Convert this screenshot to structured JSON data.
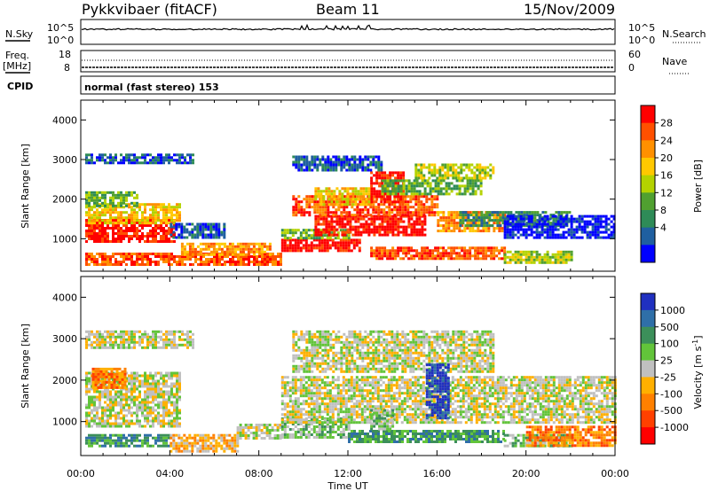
{
  "header": {
    "station": "Pykkvibaer (fitACF)",
    "beam": "Beam 11",
    "date": "15/Nov/2009"
  },
  "panels": {
    "nsky": {
      "left_label": "N.Sky",
      "right_label": "N.Search",
      "tick_top": "10^5",
      "tick_bottom": "10^0",
      "right_tick_top": "10^5",
      "right_tick_bottom": "10^0"
    },
    "freq": {
      "left_label_line1": "Freq.",
      "left_label_line2": "[MHz]",
      "tick_top": "18",
      "tick_bottom": "8",
      "right_label": "Nave",
      "right_tick_top": "60",
      "right_tick_bottom": "0"
    },
    "cpid": {
      "left_label": "CPID",
      "text": "normal (fast stereo) 153"
    }
  },
  "colorbars": {
    "power": {
      "label": "Power [dB]",
      "ticks": [
        "28",
        "24",
        "20",
        "16",
        "12",
        "8",
        "4"
      ],
      "colors": [
        "#ff0000",
        "#ff5000",
        "#ff9000",
        "#ffc800",
        "#b4d200",
        "#50a030",
        "#2e8b57",
        "#1f5fa0",
        "#0000ff"
      ]
    },
    "velocity": {
      "label": "Velocity [m s^-1]",
      "label_main": "Velocity [m s",
      "label_sup": "-1",
      "label_end": "]",
      "ticks": [
        "1000",
        "500",
        "100",
        "25",
        "-25",
        "-100",
        "-500",
        "-1000"
      ],
      "colors": [
        "#2030c0",
        "#2f6fa8",
        "#3c8f5a",
        "#62c43a",
        "#c0c0c0",
        "#ffb000",
        "#ff8000",
        "#ff4000",
        "#ff0000"
      ]
    }
  },
  "chart_data": [
    {
      "type": "heatmap",
      "name": "power",
      "xlabel": "",
      "ylabel": "Slant Range [km]",
      "x_tick_labels": [
        "00:00",
        "04:00",
        "08:00",
        "12:00",
        "16:00",
        "20:00",
        "00:00"
      ],
      "y_tick_labels": [
        "1000",
        "2000",
        "3000",
        "4000"
      ],
      "xlim_hours": [
        0,
        24
      ],
      "ylim_km": [
        180,
        4500
      ],
      "y_ticks_km": [
        1000,
        2000,
        3000,
        4000
      ],
      "bands": [
        {
          "t0": 0.2,
          "t1": 4.2,
          "r0": 900,
          "r1": 1500,
          "level": 0
        },
        {
          "t0": 0.2,
          "t1": 4.5,
          "r0": 1400,
          "r1": 1900,
          "level": 3
        },
        {
          "t0": 0.2,
          "t1": 2.5,
          "r0": 1800,
          "r1": 2200,
          "level": 5
        },
        {
          "t0": 4.0,
          "t1": 6.5,
          "r0": 1000,
          "r1": 1400,
          "level": 7
        },
        {
          "t0": 0.2,
          "t1": 5.0,
          "r0": 2900,
          "r1": 3150,
          "level": 7
        },
        {
          "t0": 0.2,
          "t1": 9.0,
          "r0": 350,
          "r1": 650,
          "level": 1
        },
        {
          "t0": 4.5,
          "t1": 8.5,
          "r0": 600,
          "r1": 900,
          "level": 2
        },
        {
          "t0": 9.0,
          "t1": 12.5,
          "r0": 700,
          "r1": 1000,
          "level": 0
        },
        {
          "t0": 9.0,
          "t1": 12.0,
          "r0": 1000,
          "r1": 1250,
          "level": 5
        },
        {
          "t0": 10.5,
          "t1": 15.5,
          "r0": 1100,
          "r1": 1600,
          "level": 0
        },
        {
          "t0": 9.5,
          "t1": 16.0,
          "r0": 1600,
          "r1": 2100,
          "level": 1
        },
        {
          "t0": 13.0,
          "t1": 14.5,
          "r0": 1900,
          "r1": 2700,
          "level": 0
        },
        {
          "t0": 16.0,
          "t1": 19.0,
          "r0": 1200,
          "r1": 1700,
          "level": 2
        },
        {
          "t0": 15.0,
          "t1": 18.5,
          "r0": 2500,
          "r1": 2900,
          "level": 4
        },
        {
          "t0": 9.5,
          "t1": 13.5,
          "r0": 2700,
          "r1": 3100,
          "level": 7
        },
        {
          "t0": 17.0,
          "t1": 22.0,
          "r0": 1300,
          "r1": 1700,
          "level": 6
        },
        {
          "t0": 19.0,
          "t1": 24.0,
          "r0": 1000,
          "r1": 1600,
          "level": 8
        },
        {
          "t0": 13.0,
          "t1": 19.0,
          "r0": 500,
          "r1": 800,
          "level": 1
        },
        {
          "t0": 19.0,
          "t1": 22.0,
          "r0": 400,
          "r1": 700,
          "level": 4
        },
        {
          "t0": 10.5,
          "t1": 13.0,
          "r0": 1850,
          "r1": 2300,
          "level": 3
        },
        {
          "t0": 13.5,
          "t1": 18.0,
          "r0": 2100,
          "r1": 2500,
          "level": 5
        }
      ]
    },
    {
      "type": "heatmap",
      "name": "velocity",
      "xlabel": "Time UT",
      "ylabel": "Slant Range [km]",
      "x_tick_labels": [
        "00:00",
        "04:00",
        "08:00",
        "12:00",
        "16:00",
        "20:00",
        "00:00"
      ],
      "y_tick_labels": [
        "1000",
        "2000",
        "3000",
        "4000"
      ],
      "xlim_hours": [
        0,
        24
      ],
      "ylim_km": [
        180,
        4500
      ],
      "y_ticks_km": [
        1000,
        2000,
        3000,
        4000
      ],
      "bands": [
        {
          "t0": 0.2,
          "t1": 4.5,
          "r0": 900,
          "r1": 2200,
          "level": 4
        },
        {
          "t0": 0.2,
          "t1": 5.0,
          "r0": 2800,
          "r1": 3200,
          "level": 4
        },
        {
          "t0": 0.5,
          "t1": 2.0,
          "r0": 1800,
          "r1": 2300,
          "level": 6
        },
        {
          "t0": 0.2,
          "t1": 4.0,
          "r0": 400,
          "r1": 700,
          "level": 2
        },
        {
          "t0": 4.0,
          "t1": 7.0,
          "r0": 300,
          "r1": 700,
          "level": 5
        },
        {
          "t0": 7.0,
          "t1": 9.0,
          "r0": 600,
          "r1": 950,
          "level": 4
        },
        {
          "t0": 9.0,
          "t1": 12.0,
          "r0": 600,
          "r1": 1100,
          "level": 3
        },
        {
          "t0": 9.0,
          "t1": 24.0,
          "r0": 1000,
          "r1": 2100,
          "level": 4
        },
        {
          "t0": 9.5,
          "t1": 18.5,
          "r0": 2200,
          "r1": 3200,
          "level": 4
        },
        {
          "t0": 12.0,
          "t1": 19.0,
          "r0": 500,
          "r1": 800,
          "level": 2
        },
        {
          "t0": 15.5,
          "t1": 16.5,
          "r0": 1100,
          "r1": 2400,
          "level": 0
        },
        {
          "t0": 13.0,
          "t1": 14.0,
          "r0": 800,
          "r1": 1300,
          "level": 3
        },
        {
          "t0": 19.0,
          "t1": 22.0,
          "r0": 400,
          "r1": 700,
          "level": 3
        },
        {
          "t0": 20.0,
          "t1": 24.0,
          "r0": 400,
          "r1": 900,
          "level": 6
        }
      ]
    }
  ]
}
